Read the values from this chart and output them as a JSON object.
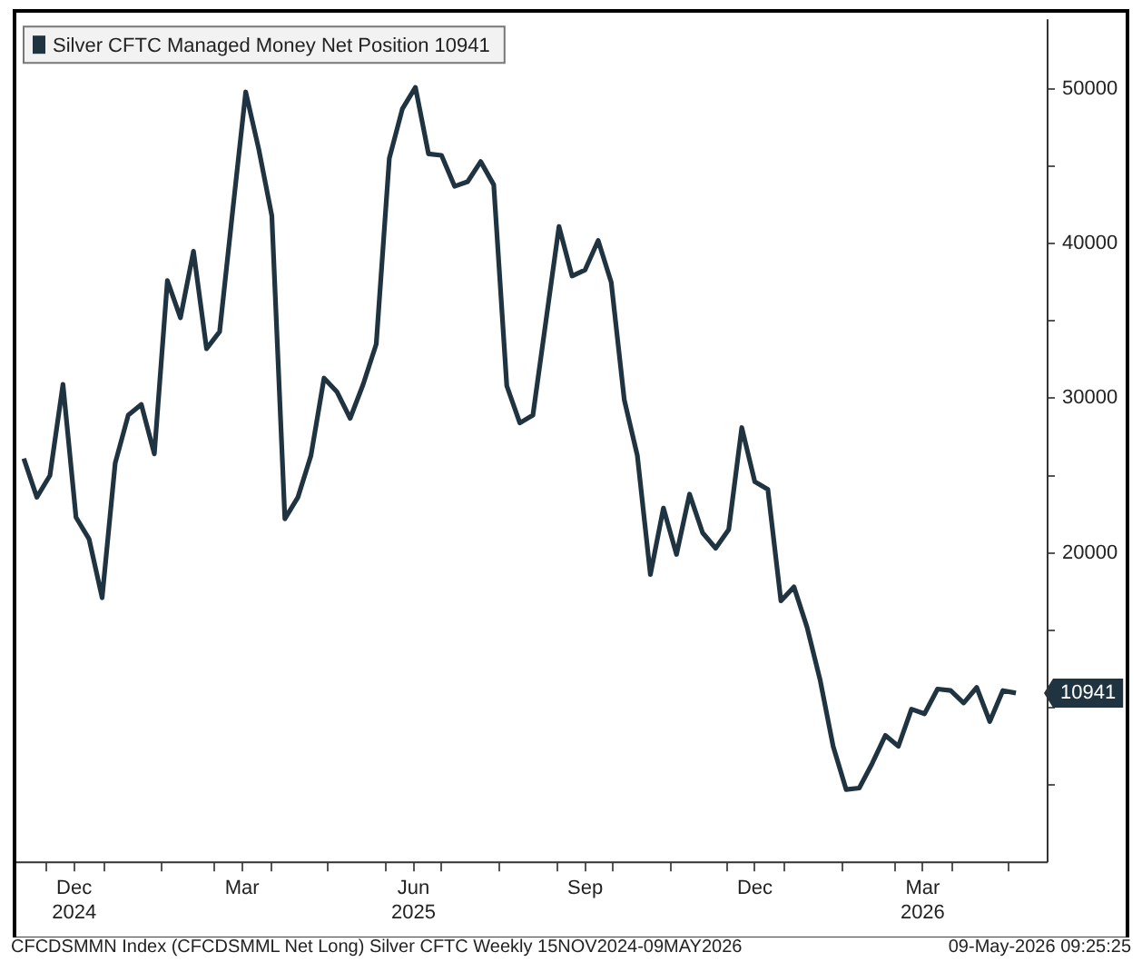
{
  "chart_data": {
    "type": "line",
    "x": [
      "2024-11-19",
      "2024-11-26",
      "2024-12-03",
      "2024-12-10",
      "2024-12-17",
      "2024-12-24",
      "2024-12-31",
      "2025-01-07",
      "2025-01-14",
      "2025-01-21",
      "2025-01-28",
      "2025-02-04",
      "2025-02-11",
      "2025-02-18",
      "2025-02-25",
      "2025-03-04",
      "2025-03-11",
      "2025-03-18",
      "2025-03-25",
      "2025-04-01",
      "2025-04-08",
      "2025-04-15",
      "2025-04-22",
      "2025-04-29",
      "2025-05-06",
      "2025-05-13",
      "2025-05-20",
      "2025-05-27",
      "2025-06-03",
      "2025-06-10",
      "2025-06-17",
      "2025-06-24",
      "2025-07-01",
      "2025-07-08",
      "2025-07-15",
      "2025-07-22",
      "2025-07-29",
      "2025-08-05",
      "2025-08-12",
      "2025-08-19",
      "2025-08-26",
      "2025-09-02",
      "2025-09-09",
      "2025-09-16",
      "2025-09-23",
      "2025-09-30",
      "2025-10-07",
      "2025-10-14",
      "2025-10-21",
      "2025-10-28",
      "2025-11-04",
      "2025-11-11",
      "2025-11-18",
      "2025-11-25",
      "2025-12-02",
      "2025-12-09",
      "2025-12-16",
      "2025-12-23",
      "2025-12-30",
      "2026-01-06",
      "2026-01-13",
      "2026-01-20",
      "2026-01-27",
      "2026-02-03",
      "2026-02-10",
      "2026-02-17",
      "2026-02-24",
      "2026-03-03",
      "2026-03-10",
      "2026-03-17",
      "2026-03-24",
      "2026-03-31",
      "2026-04-07",
      "2026-04-14",
      "2026-04-21",
      "2026-04-28",
      "2026-05-05"
    ],
    "series": [
      {
        "name": "Silver CFTC Managed Money Net Position 10941",
        "color": "#1f3440",
        "values": [
          26100,
          23600,
          25000,
          30900,
          22300,
          20900,
          17100,
          25800,
          28900,
          29600,
          26400,
          37600,
          35200,
          39500,
          33200,
          34300,
          42100,
          49800,
          46100,
          41800,
          22200,
          23600,
          26300,
          31300,
          30400,
          28700,
          30900,
          33500,
          45500,
          48700,
          50100,
          45800,
          45700,
          43700,
          44000,
          45300,
          43800,
          30800,
          28400,
          28900,
          35000,
          41100,
          37900,
          38300,
          40200,
          37500,
          29900,
          26300,
          18600,
          22900,
          19900,
          23800,
          21300,
          20300,
          21500,
          28100,
          24600,
          24100,
          16900,
          17800,
          15200,
          11800,
          7500,
          4700,
          4800,
          6400,
          8200,
          7500,
          9900,
          9600,
          11200,
          11100,
          10300,
          11300,
          9100,
          11100,
          10941
        ]
      }
    ],
    "xlim": [
      "2024-11-15",
      "2026-05-22"
    ],
    "xticks": [
      {
        "value": "2024-12-01",
        "label": null
      },
      {
        "value": "2024-12-16",
        "label": "Dec\n2024"
      },
      {
        "value": "2025-01-01",
        "label": null
      },
      {
        "value": "2025-02-01",
        "label": null
      },
      {
        "value": "2025-03-01",
        "label": null
      },
      {
        "value": "2025-03-16",
        "label": "Mar"
      },
      {
        "value": "2025-04-01",
        "label": null
      },
      {
        "value": "2025-05-01",
        "label": null
      },
      {
        "value": "2025-06-01",
        "label": null
      },
      {
        "value": "2025-06-16",
        "label": "Jun\n2025"
      },
      {
        "value": "2025-07-01",
        "label": null
      },
      {
        "value": "2025-08-01",
        "label": null
      },
      {
        "value": "2025-09-01",
        "label": null
      },
      {
        "value": "2025-09-16",
        "label": "Sep"
      },
      {
        "value": "2025-10-01",
        "label": null
      },
      {
        "value": "2025-11-01",
        "label": null
      },
      {
        "value": "2025-12-01",
        "label": null
      },
      {
        "value": "2025-12-16",
        "label": "Dec"
      },
      {
        "value": "2026-01-01",
        "label": null
      },
      {
        "value": "2026-02-01",
        "label": null
      },
      {
        "value": "2026-03-01",
        "label": null
      },
      {
        "value": "2026-03-16",
        "label": "Mar\n2026"
      },
      {
        "value": "2026-04-01",
        "label": null
      },
      {
        "value": "2026-05-01",
        "label": null
      }
    ],
    "ylim": [
      0,
      54500
    ],
    "yticks": [
      {
        "value": 5000,
        "label": null
      },
      {
        "value": 10000,
        "label": null
      },
      {
        "value": 15000,
        "label": null
      },
      20000,
      {
        "value": 25000,
        "label": null
      },
      30000,
      {
        "value": 35000,
        "label": null
      },
      40000,
      {
        "value": 45000,
        "label": null
      },
      50000
    ],
    "legend": "top left",
    "marker": "none",
    "line_style": "solid",
    "annotations": [
      {
        "text": "10941",
        "x": "2026-05-05",
        "y": 10941
      },
      "CFCDSMMN Index (CFCDSMML Net Long) Silver CFTC Weekly 15NOV2024-09MAY2026",
      "09-May-2026 09:25:25"
    ]
  }
}
